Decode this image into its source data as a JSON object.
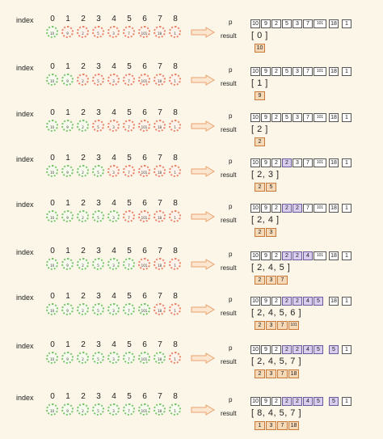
{
  "labels": {
    "index": "index",
    "p": "p",
    "result": "result"
  },
  "indices": [
    "0",
    "1",
    "2",
    "3",
    "4",
    "5",
    "6",
    "7",
    "8"
  ],
  "circle_values": [
    "10",
    "9",
    "2",
    "5",
    "3",
    "7",
    "101",
    "18",
    "1"
  ],
  "colors": {
    "green": "#7ac46a",
    "orange": "#e98467",
    "arrow": "#e9a26e",
    "highlight": "#d9cdf0",
    "result_cell": "#f6d9b7"
  },
  "steps": [
    {
      "states": [
        "g",
        "o",
        "o",
        "o",
        "o",
        "o",
        "o",
        "o",
        "o"
      ],
      "p": [
        "10",
        "9",
        "2",
        "5",
        "3",
        "7",
        "101",
        "18",
        "1"
      ],
      "p_highlight": [],
      "result_text": "[ 0 ]",
      "result_cells": [
        "10"
      ]
    },
    {
      "states": [
        "g",
        "g",
        "o",
        "o",
        "o",
        "o",
        "o",
        "o",
        "o"
      ],
      "p": [
        "10",
        "9",
        "2",
        "5",
        "3",
        "7",
        "101",
        "18",
        "1"
      ],
      "p_highlight": [],
      "result_text": "[ 1 ]",
      "result_cells": [
        "9"
      ]
    },
    {
      "states": [
        "g",
        "g",
        "g",
        "o",
        "o",
        "o",
        "o",
        "o",
        "o"
      ],
      "p": [
        "10",
        "9",
        "2",
        "5",
        "3",
        "7",
        "101",
        "18",
        "1"
      ],
      "p_highlight": [],
      "result_text": "[ 2 ]",
      "result_cells": [
        "2"
      ]
    },
    {
      "states": [
        "g",
        "g",
        "g",
        "g",
        "o",
        "o",
        "o",
        "o",
        "o"
      ],
      "p": [
        "10",
        "9",
        "2",
        "2",
        "3",
        "7",
        "101",
        "18",
        "1"
      ],
      "p_highlight": [
        3
      ],
      "result_text": "[ 2, 3 ]",
      "result_cells": [
        "2",
        "5"
      ]
    },
    {
      "states": [
        "g",
        "g",
        "g",
        "g",
        "g",
        "o",
        "o",
        "o",
        "o"
      ],
      "p": [
        "10",
        "9",
        "2",
        "2",
        "2",
        "7",
        "101",
        "18",
        "1"
      ],
      "p_highlight": [
        3,
        4
      ],
      "result_text": "[ 2, 4 ]",
      "result_cells": [
        "2",
        "3"
      ]
    },
    {
      "states": [
        "g",
        "g",
        "g",
        "g",
        "g",
        "g",
        "o",
        "o",
        "o"
      ],
      "p": [
        "10",
        "9",
        "2",
        "2",
        "2",
        "4",
        "101",
        "18",
        "1"
      ],
      "p_highlight": [
        3,
        4,
        5
      ],
      "result_text": "[ 2, 4, 5 ]",
      "result_cells": [
        "2",
        "3",
        "7"
      ]
    },
    {
      "states": [
        "g",
        "g",
        "g",
        "g",
        "g",
        "g",
        "g",
        "o",
        "o"
      ],
      "p": [
        "10",
        "9",
        "2",
        "2",
        "2",
        "4",
        "5",
        "18",
        "1"
      ],
      "p_highlight": [
        3,
        4,
        5,
        6
      ],
      "result_text": "[ 2, 4, 5, 6 ]",
      "result_cells": [
        "2",
        "3",
        "7",
        "101"
      ]
    },
    {
      "states": [
        "g",
        "g",
        "g",
        "g",
        "g",
        "g",
        "g",
        "g",
        "o"
      ],
      "p": [
        "10",
        "9",
        "2",
        "2",
        "2",
        "4",
        "5",
        "5",
        "1"
      ],
      "p_highlight": [
        3,
        4,
        5,
        6,
        7
      ],
      "result_text": "[ 2, 4, 5, 7 ]",
      "result_cells": [
        "2",
        "3",
        "7",
        "18"
      ]
    },
    {
      "states": [
        "g",
        "g",
        "g",
        "g",
        "g",
        "g",
        "g",
        "g",
        "g"
      ],
      "p": [
        "10",
        "9",
        "2",
        "2",
        "2",
        "4",
        "5",
        "5",
        "1"
      ],
      "p_highlight": [
        3,
        4,
        5,
        6,
        7
      ],
      "result_text": "[ 8, 4, 5, 7 ]",
      "result_cells": [
        "1",
        "3",
        "7",
        "18"
      ]
    }
  ]
}
